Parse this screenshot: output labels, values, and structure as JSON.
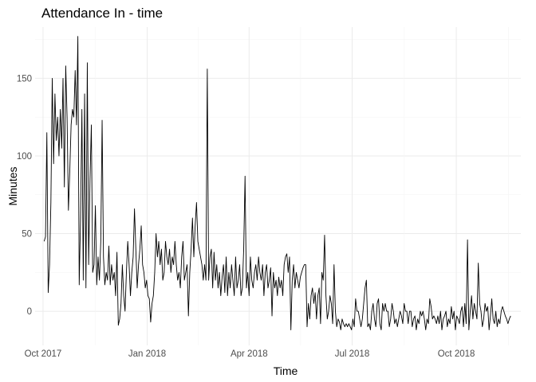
{
  "chart_data": {
    "type": "line",
    "title": "Attendance In - time",
    "xlabel": "Time",
    "ylabel": "Minutes",
    "grid": true,
    "legend": "none",
    "line_color": "#000000",
    "xlim": [
      "2017-09-24",
      "2018-11-27"
    ],
    "ylim": [
      -22,
      183
    ],
    "x_ticks": [
      {
        "date": "2017-10-01",
        "label": "Oct 2017"
      },
      {
        "date": "2018-01-01",
        "label": "Jan 2018"
      },
      {
        "date": "2018-04-01",
        "label": "Apr 2018"
      },
      {
        "date": "2018-07-01",
        "label": "Jul 2018"
      },
      {
        "date": "2018-10-01",
        "label": "Oct 2018"
      }
    ],
    "y_ticks": [
      0,
      50,
      100,
      150
    ],
    "series": [
      {
        "x_start": "2017-10-02",
        "x_end": "2018-11-18",
        "values": [
          45,
          48,
          115,
          12,
          30,
          70,
          150,
          95,
          140,
          110,
          125,
          100,
          130,
          105,
          150,
          80,
          158,
          125,
          65,
          90,
          120,
          130,
          125,
          155,
          120,
          177,
          17,
          60,
          130,
          20,
          140,
          15,
          160,
          30,
          85,
          120,
          25,
          30,
          68,
          17,
          35,
          20,
          45,
          123,
          35,
          17,
          25,
          20,
          42,
          17,
          30,
          20,
          25,
          10,
          38,
          -9,
          -5,
          5,
          30,
          10,
          0,
          25,
          45,
          30,
          10,
          25,
          35,
          66,
          40,
          15,
          30,
          40,
          55,
          30,
          25,
          15,
          20,
          10,
          8,
          -7,
          5,
          10,
          25,
          50,
          35,
          45,
          30,
          40,
          20,
          25,
          45,
          35,
          30,
          40,
          25,
          35,
          30,
          45,
          30,
          20,
          25,
          15,
          35,
          45,
          20,
          25,
          30,
          -3,
          25,
          40,
          60,
          35,
          55,
          70,
          45,
          40,
          35,
          30,
          20,
          30,
          20,
          156,
          20,
          35,
          40,
          15,
          38,
          20,
          30,
          15,
          25,
          10,
          22,
          30,
          12,
          35,
          10,
          25,
          15,
          30,
          20,
          10,
          35,
          15,
          20,
          30,
          10,
          15,
          40,
          87,
          15,
          25,
          10,
          35,
          20,
          15,
          25,
          30,
          20,
          35,
          25,
          20,
          30,
          10,
          25,
          30,
          15,
          20,
          28,
          -3,
          25,
          15,
          20,
          10,
          22,
          15,
          20,
          10,
          30,
          35,
          37,
          25,
          35,
          -12,
          20,
          30,
          15,
          25,
          20,
          15,
          22,
          25,
          28,
          30,
          30,
          -10,
          5,
          -5,
          10,
          15,
          5,
          12,
          -5,
          10,
          15,
          -8,
          25,
          20,
          49,
          10,
          -5,
          0,
          10,
          5,
          -8,
          30,
          0,
          -10,
          -5,
          -7,
          -12,
          -5,
          -8,
          -10,
          -8,
          -10,
          -8,
          -10,
          -12,
          -5,
          -10,
          8,
          0,
          0,
          -5,
          -10,
          -5,
          5,
          15,
          20,
          -10,
          -8,
          -12,
          0,
          5,
          -5,
          -10,
          5,
          8,
          -8,
          -12,
          5,
          0,
          5,
          0,
          0,
          -10,
          -5,
          5,
          0,
          -8,
          -5,
          -10,
          -5,
          0,
          -3,
          -8,
          5,
          0,
          0,
          -8,
          0,
          0,
          -10,
          -5,
          -3,
          -12,
          -5,
          -8,
          0,
          -3,
          0,
          -5,
          -12,
          -5,
          -8,
          8,
          3,
          -5,
          -3,
          -5,
          -8,
          -3,
          -8,
          0,
          -12,
          -5,
          -3,
          0,
          -10,
          -5,
          -8,
          3,
          -5,
          0,
          -12,
          -3,
          -5,
          -8,
          0,
          3,
          -10,
          5,
          -8,
          46,
          -12,
          0,
          10,
          -5,
          5,
          0,
          -5,
          31,
          5,
          0,
          -10,
          -5,
          5,
          0,
          3,
          -12,
          -3,
          8,
          -5,
          -8,
          0,
          -10,
          -5,
          -8,
          0,
          3,
          0,
          -3,
          -5,
          -8,
          -5,
          -3
        ]
      }
    ]
  }
}
